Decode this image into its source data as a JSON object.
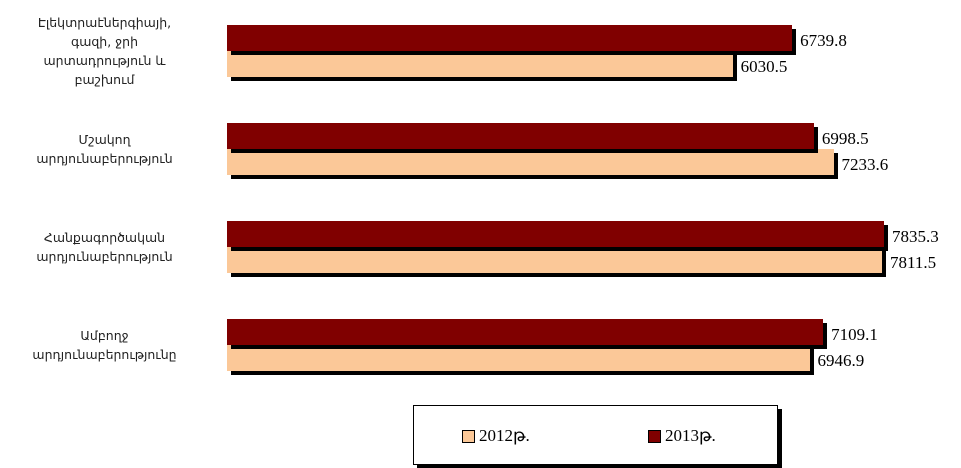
{
  "chart_data": {
    "type": "bar",
    "orientation": "horizontal",
    "categories": [
      "Էլեկտրաէներգիայի,\nգազի, ջրի\nարտադրություն և\nբաշխում",
      "Մշակող\nարդյունաբերություն",
      "Հանքագործական\nարդյունաբերություն",
      "Ամբողջ\nարդյունաբերությունը"
    ],
    "series": [
      {
        "name": "2012թ.",
        "color": "#fbc898",
        "values": [
          6030.5,
          7233.6,
          7811.5,
          6946.9
        ]
      },
      {
        "name": "2013թ.",
        "color": "#800000",
        "values": [
          6739.8,
          6998.5,
          7835.3,
          7109.1
        ]
      }
    ],
    "legend": "bottom"
  }
}
